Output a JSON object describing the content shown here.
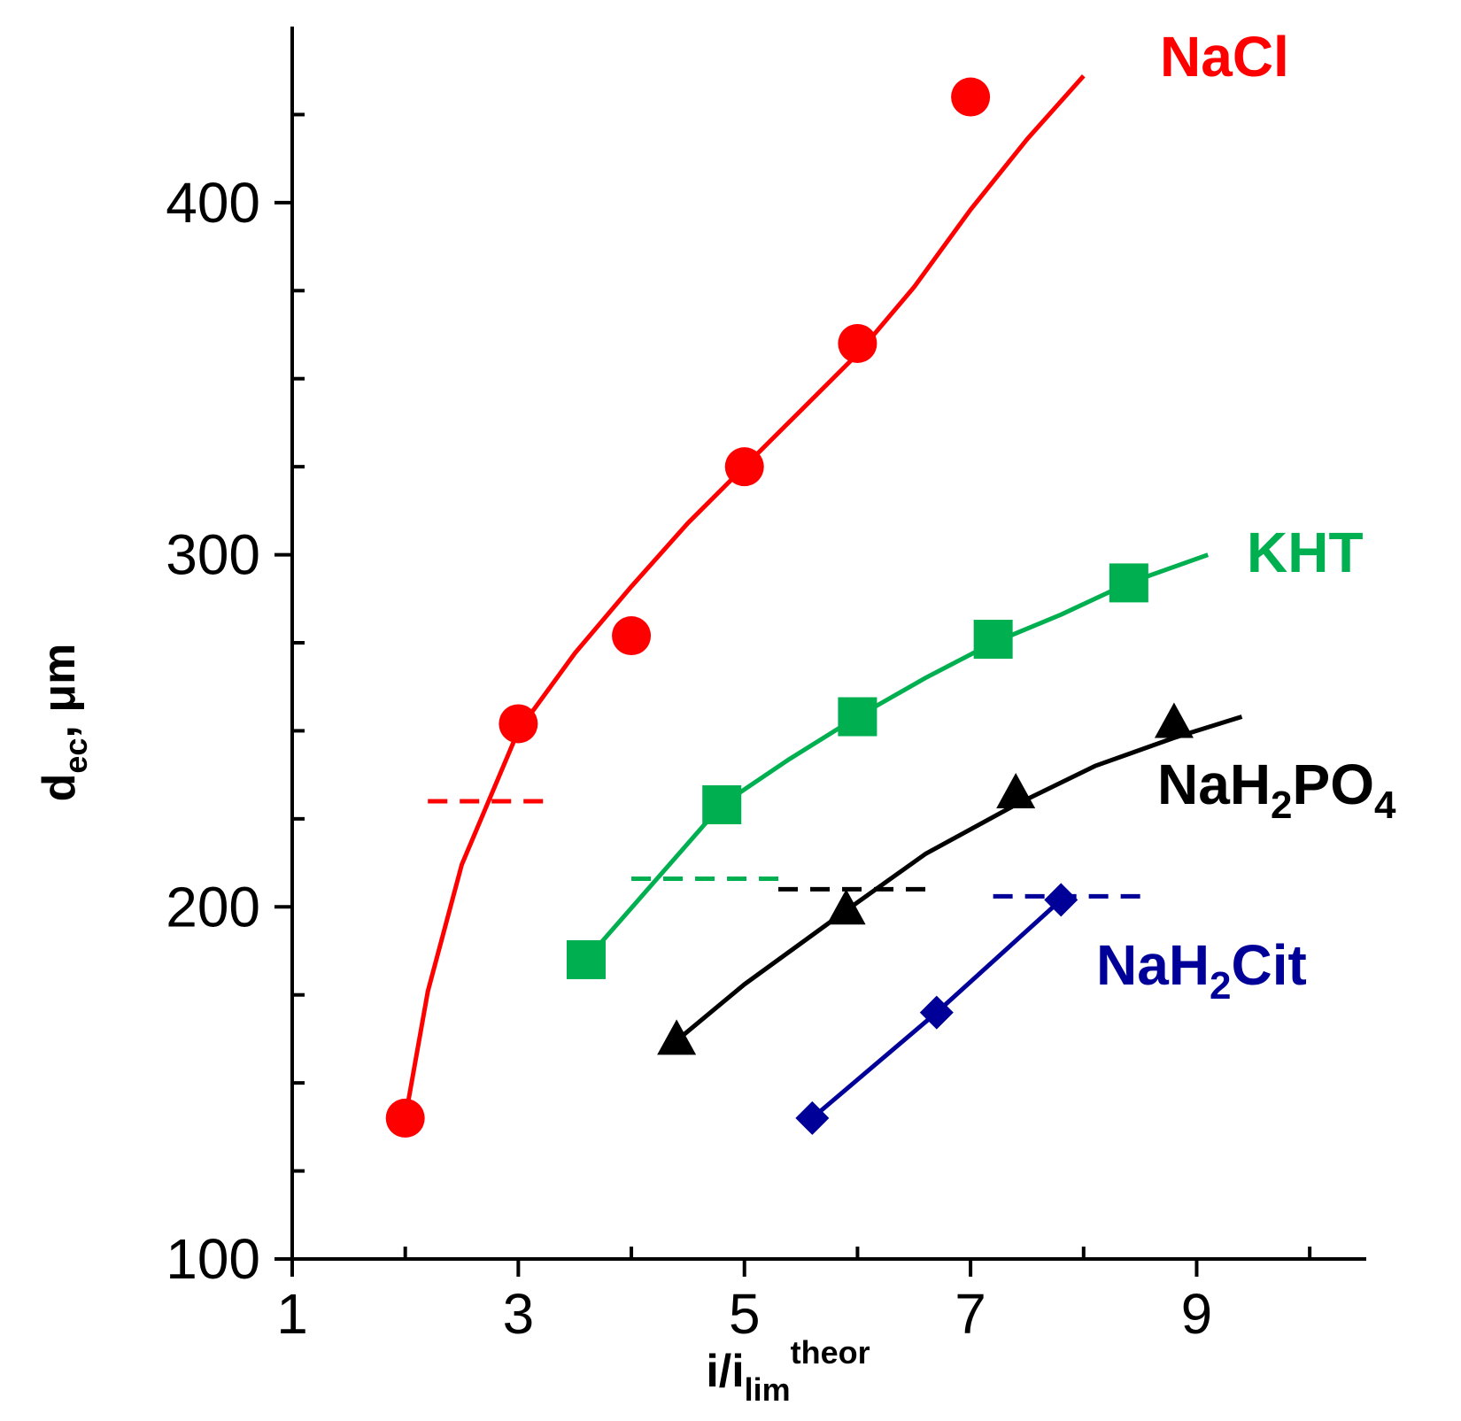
{
  "chart_data": {
    "type": "scatter",
    "title": "",
    "xlabel": {
      "base": "i/i",
      "sub": "lim",
      "sup": "theor"
    },
    "ylabel": {
      "base": "d",
      "sub": "ec",
      "rest": ",  μm"
    },
    "xlim": [
      1,
      10.5
    ],
    "ylim": [
      100,
      450
    ],
    "x_ticks": [
      "1",
      "3",
      "5",
      "7",
      "9"
    ],
    "y_ticks": [
      "100",
      "200",
      "300",
      "400"
    ],
    "grid": false,
    "series": [
      {
        "name": "NaCl",
        "color": "#ff0000",
        "marker": "circle",
        "points": [
          [
            2.0,
            140
          ],
          [
            3.0,
            252
          ],
          [
            4.0,
            277
          ],
          [
            5.0,
            325
          ],
          [
            6.0,
            360
          ],
          [
            7.0,
            430
          ]
        ],
        "fit": [
          [
            2.0,
            140
          ],
          [
            2.2,
            176
          ],
          [
            2.5,
            212
          ],
          [
            3.0,
            250
          ],
          [
            3.5,
            272
          ],
          [
            4.0,
            291
          ],
          [
            4.5,
            309
          ],
          [
            5.0,
            325
          ],
          [
            5.5,
            341
          ],
          [
            6.0,
            357
          ],
          [
            6.5,
            376
          ],
          [
            7.0,
            398
          ],
          [
            7.5,
            418
          ],
          [
            8.0,
            436
          ]
        ],
        "dashed_y": 230,
        "dashed_x": [
          2.2,
          3.3
        ]
      },
      {
        "name": "KHT",
        "color": "#00b050",
        "marker": "square",
        "points": [
          [
            3.6,
            185
          ],
          [
            4.8,
            229
          ],
          [
            6.0,
            254
          ],
          [
            7.2,
            276
          ],
          [
            8.4,
            292
          ]
        ],
        "fit": [
          [
            3.6,
            185
          ],
          [
            4.2,
            207
          ],
          [
            4.8,
            229
          ],
          [
            5.4,
            242
          ],
          [
            6.0,
            254
          ],
          [
            6.6,
            265
          ],
          [
            7.2,
            275
          ],
          [
            7.8,
            283
          ],
          [
            8.4,
            292
          ],
          [
            9.1,
            300
          ]
        ],
        "dashed_y": 208,
        "dashed_x": [
          4.0,
          5.3
        ]
      },
      {
        "name": "NaH2PO4",
        "color": "#000000",
        "marker": "triangle",
        "points": [
          [
            4.4,
            162
          ],
          [
            5.9,
            199
          ],
          [
            7.4,
            232
          ],
          [
            8.8,
            252
          ]
        ],
        "fit": [
          [
            4.4,
            162
          ],
          [
            5.0,
            178
          ],
          [
            5.9,
            199
          ],
          [
            6.6,
            215
          ],
          [
            7.4,
            229
          ],
          [
            8.1,
            240
          ],
          [
            8.8,
            248
          ],
          [
            9.4,
            254
          ]
        ],
        "dashed_y": 205,
        "dashed_x": [
          5.3,
          6.6
        ]
      },
      {
        "name": "NaH2Cit",
        "color": "#000099",
        "marker": "diamond",
        "points": [
          [
            5.6,
            140
          ],
          [
            6.7,
            170
          ],
          [
            7.8,
            202
          ]
        ],
        "fit": [
          [
            5.6,
            140
          ],
          [
            6.7,
            170
          ],
          [
            7.8,
            202
          ]
        ],
        "dashed_y": 203,
        "dashed_x": [
          7.2,
          8.6
        ]
      }
    ],
    "series_labels": [
      {
        "series": "NaCl",
        "base": "NaCl",
        "sub": "",
        "tail": ""
      },
      {
        "series": "KHT",
        "base": "KHT",
        "sub": "",
        "tail": ""
      },
      {
        "series": "NaH2PO4",
        "base": "NaH",
        "sub": "2",
        "tail": "PO",
        "sub2": "4"
      },
      {
        "series": "NaH2Cit",
        "base": "NaH",
        "sub": "2",
        "tail": "Cit",
        "sub2": ""
      }
    ]
  }
}
